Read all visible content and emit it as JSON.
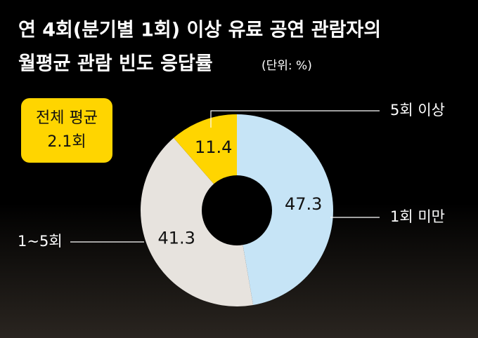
{
  "chart_data": {
    "type": "donut",
    "title": [
      "연 4회(분기별 1회) 이상 유료 공연 관람자의",
      "월평균 관람 빈도 응답률"
    ],
    "unit": "(단위: %)",
    "annotation": [
      "전체 평균",
      "2.1회"
    ],
    "categories": [
      "1회 미만",
      "1~5회",
      "5회 이상"
    ],
    "values": [
      47.3,
      41.3,
      11.4
    ],
    "colors": [
      "#c6e4f6",
      "#e7e3de",
      "#ffd500"
    ]
  }
}
